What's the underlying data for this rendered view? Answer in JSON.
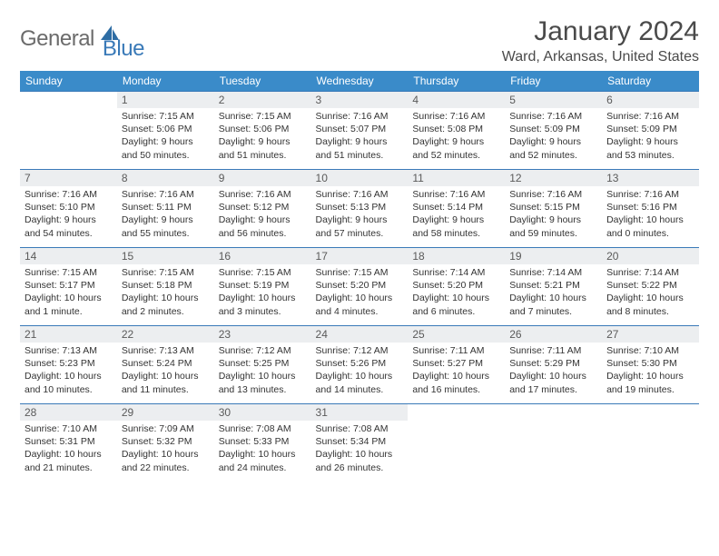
{
  "branding": {
    "word1": "General",
    "word2": "Blue",
    "logo_fill": "#2e6da4"
  },
  "header": {
    "title": "January 2024",
    "location": "Ward, Arkansas, United States"
  },
  "colors": {
    "header_bg": "#3a8bc9",
    "header_text": "#ffffff",
    "daynum_bg": "#eceef0",
    "border": "#3a7ab8",
    "text": "#333333"
  },
  "weekdays": [
    "Sunday",
    "Monday",
    "Tuesday",
    "Wednesday",
    "Thursday",
    "Friday",
    "Saturday"
  ],
  "weeks": [
    [
      {
        "n": "",
        "sr": "",
        "ss": "",
        "dl": ""
      },
      {
        "n": "1",
        "sr": "Sunrise: 7:15 AM",
        "ss": "Sunset: 5:06 PM",
        "dl": "Daylight: 9 hours and 50 minutes."
      },
      {
        "n": "2",
        "sr": "Sunrise: 7:15 AM",
        "ss": "Sunset: 5:06 PM",
        "dl": "Daylight: 9 hours and 51 minutes."
      },
      {
        "n": "3",
        "sr": "Sunrise: 7:16 AM",
        "ss": "Sunset: 5:07 PM",
        "dl": "Daylight: 9 hours and 51 minutes."
      },
      {
        "n": "4",
        "sr": "Sunrise: 7:16 AM",
        "ss": "Sunset: 5:08 PM",
        "dl": "Daylight: 9 hours and 52 minutes."
      },
      {
        "n": "5",
        "sr": "Sunrise: 7:16 AM",
        "ss": "Sunset: 5:09 PM",
        "dl": "Daylight: 9 hours and 52 minutes."
      },
      {
        "n": "6",
        "sr": "Sunrise: 7:16 AM",
        "ss": "Sunset: 5:09 PM",
        "dl": "Daylight: 9 hours and 53 minutes."
      }
    ],
    [
      {
        "n": "7",
        "sr": "Sunrise: 7:16 AM",
        "ss": "Sunset: 5:10 PM",
        "dl": "Daylight: 9 hours and 54 minutes."
      },
      {
        "n": "8",
        "sr": "Sunrise: 7:16 AM",
        "ss": "Sunset: 5:11 PM",
        "dl": "Daylight: 9 hours and 55 minutes."
      },
      {
        "n": "9",
        "sr": "Sunrise: 7:16 AM",
        "ss": "Sunset: 5:12 PM",
        "dl": "Daylight: 9 hours and 56 minutes."
      },
      {
        "n": "10",
        "sr": "Sunrise: 7:16 AM",
        "ss": "Sunset: 5:13 PM",
        "dl": "Daylight: 9 hours and 57 minutes."
      },
      {
        "n": "11",
        "sr": "Sunrise: 7:16 AM",
        "ss": "Sunset: 5:14 PM",
        "dl": "Daylight: 9 hours and 58 minutes."
      },
      {
        "n": "12",
        "sr": "Sunrise: 7:16 AM",
        "ss": "Sunset: 5:15 PM",
        "dl": "Daylight: 9 hours and 59 minutes."
      },
      {
        "n": "13",
        "sr": "Sunrise: 7:16 AM",
        "ss": "Sunset: 5:16 PM",
        "dl": "Daylight: 10 hours and 0 minutes."
      }
    ],
    [
      {
        "n": "14",
        "sr": "Sunrise: 7:15 AM",
        "ss": "Sunset: 5:17 PM",
        "dl": "Daylight: 10 hours and 1 minute."
      },
      {
        "n": "15",
        "sr": "Sunrise: 7:15 AM",
        "ss": "Sunset: 5:18 PM",
        "dl": "Daylight: 10 hours and 2 minutes."
      },
      {
        "n": "16",
        "sr": "Sunrise: 7:15 AM",
        "ss": "Sunset: 5:19 PM",
        "dl": "Daylight: 10 hours and 3 minutes."
      },
      {
        "n": "17",
        "sr": "Sunrise: 7:15 AM",
        "ss": "Sunset: 5:20 PM",
        "dl": "Daylight: 10 hours and 4 minutes."
      },
      {
        "n": "18",
        "sr": "Sunrise: 7:14 AM",
        "ss": "Sunset: 5:20 PM",
        "dl": "Daylight: 10 hours and 6 minutes."
      },
      {
        "n": "19",
        "sr": "Sunrise: 7:14 AM",
        "ss": "Sunset: 5:21 PM",
        "dl": "Daylight: 10 hours and 7 minutes."
      },
      {
        "n": "20",
        "sr": "Sunrise: 7:14 AM",
        "ss": "Sunset: 5:22 PM",
        "dl": "Daylight: 10 hours and 8 minutes."
      }
    ],
    [
      {
        "n": "21",
        "sr": "Sunrise: 7:13 AM",
        "ss": "Sunset: 5:23 PM",
        "dl": "Daylight: 10 hours and 10 minutes."
      },
      {
        "n": "22",
        "sr": "Sunrise: 7:13 AM",
        "ss": "Sunset: 5:24 PM",
        "dl": "Daylight: 10 hours and 11 minutes."
      },
      {
        "n": "23",
        "sr": "Sunrise: 7:12 AM",
        "ss": "Sunset: 5:25 PM",
        "dl": "Daylight: 10 hours and 13 minutes."
      },
      {
        "n": "24",
        "sr": "Sunrise: 7:12 AM",
        "ss": "Sunset: 5:26 PM",
        "dl": "Daylight: 10 hours and 14 minutes."
      },
      {
        "n": "25",
        "sr": "Sunrise: 7:11 AM",
        "ss": "Sunset: 5:27 PM",
        "dl": "Daylight: 10 hours and 16 minutes."
      },
      {
        "n": "26",
        "sr": "Sunrise: 7:11 AM",
        "ss": "Sunset: 5:29 PM",
        "dl": "Daylight: 10 hours and 17 minutes."
      },
      {
        "n": "27",
        "sr": "Sunrise: 7:10 AM",
        "ss": "Sunset: 5:30 PM",
        "dl": "Daylight: 10 hours and 19 minutes."
      }
    ],
    [
      {
        "n": "28",
        "sr": "Sunrise: 7:10 AM",
        "ss": "Sunset: 5:31 PM",
        "dl": "Daylight: 10 hours and 21 minutes."
      },
      {
        "n": "29",
        "sr": "Sunrise: 7:09 AM",
        "ss": "Sunset: 5:32 PM",
        "dl": "Daylight: 10 hours and 22 minutes."
      },
      {
        "n": "30",
        "sr": "Sunrise: 7:08 AM",
        "ss": "Sunset: 5:33 PM",
        "dl": "Daylight: 10 hours and 24 minutes."
      },
      {
        "n": "31",
        "sr": "Sunrise: 7:08 AM",
        "ss": "Sunset: 5:34 PM",
        "dl": "Daylight: 10 hours and 26 minutes."
      },
      {
        "n": "",
        "sr": "",
        "ss": "",
        "dl": ""
      },
      {
        "n": "",
        "sr": "",
        "ss": "",
        "dl": ""
      },
      {
        "n": "",
        "sr": "",
        "ss": "",
        "dl": ""
      }
    ]
  ]
}
